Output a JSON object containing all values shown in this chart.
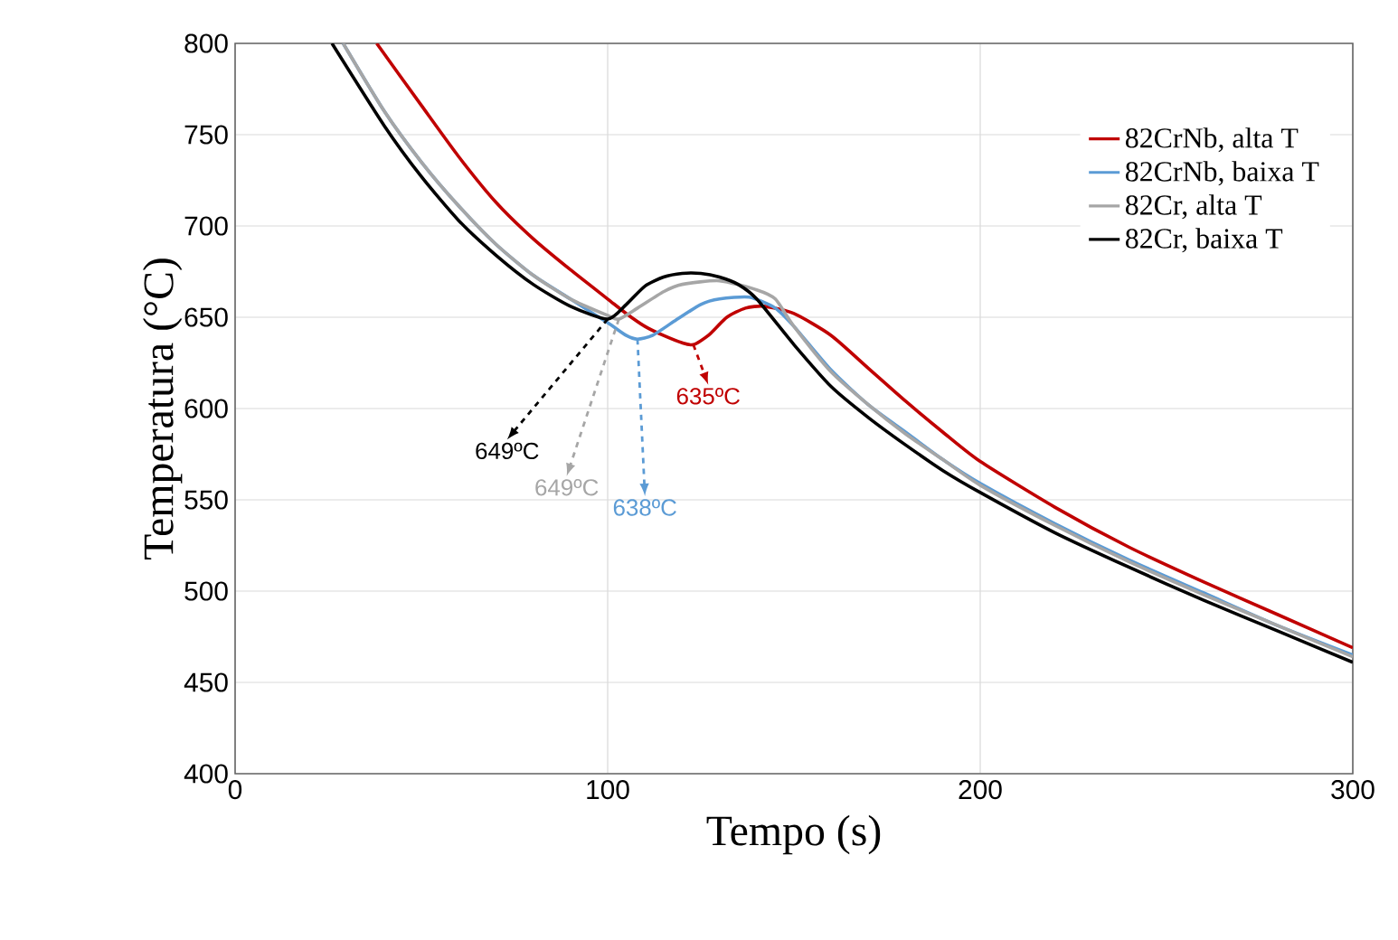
{
  "chart_data": {
    "type": "line",
    "xlabel": "Tempo (s)",
    "ylabel": "Temperatura (°C)",
    "xlim": [
      0,
      300
    ],
    "ylim": [
      400,
      800
    ],
    "xticks": [
      0,
      100,
      200,
      300
    ],
    "yticks": [
      400,
      450,
      500,
      550,
      600,
      650,
      700,
      750,
      800
    ],
    "grid": true,
    "legend": "top right",
    "marker": "none",
    "line_style": "solid",
    "series": [
      {
        "name": "82CrNb, alta T",
        "color": "#c00000",
        "x": [
          38,
          50,
          60,
          70,
          80,
          90,
          100,
          105,
          110,
          115,
          120,
          123,
          127,
          132,
          137,
          142,
          150,
          160,
          170,
          180,
          190,
          200,
          220,
          240,
          260,
          280,
          300
        ],
        "values": [
          800,
          766,
          738,
          713,
          693,
          676,
          660,
          652,
          645,
          640,
          636,
          635,
          640,
          650,
          655,
          656,
          652,
          640,
          622,
          604,
          587,
          571,
          546,
          524,
          505,
          487,
          469
        ]
      },
      {
        "name": "82CrNb, baixa T",
        "color": "#5b9bd5",
        "x": [
          29,
          40,
          50,
          60,
          70,
          80,
          90,
          100,
          105,
          108,
          112,
          118,
          125,
          130,
          138,
          145,
          150,
          160,
          170,
          180,
          190,
          200,
          220,
          240,
          260,
          280,
          300
        ],
        "values": [
          800,
          763,
          735,
          711,
          690,
          673,
          660,
          647,
          640,
          638,
          640,
          648,
          657,
          660,
          661,
          655,
          645,
          621,
          602,
          587,
          572,
          559,
          537,
          517,
          499,
          481,
          465
        ]
      },
      {
        "name": "82Cr, alta T",
        "color": "#a6a6a6",
        "x": [
          29,
          40,
          50,
          60,
          70,
          80,
          90,
          100,
          103,
          108,
          115,
          120,
          130,
          140,
          145,
          150,
          160,
          170,
          180,
          190,
          200,
          220,
          240,
          260,
          280,
          300
        ],
        "values": [
          800,
          763,
          735,
          711,
          690,
          673,
          660,
          651,
          649,
          655,
          664,
          668,
          670,
          665,
          660,
          645,
          620,
          602,
          586,
          572,
          558,
          536,
          516,
          498,
          481,
          464
        ]
      },
      {
        "name": "82Cr, baixa T",
        "color": "#000000",
        "x": [
          26,
          40,
          50,
          60,
          70,
          80,
          90,
          100,
          105,
          110,
          115,
          120,
          125,
          130,
          135,
          140,
          150,
          160,
          170,
          180,
          190,
          200,
          220,
          240,
          260,
          280,
          300
        ],
        "values": [
          800,
          755,
          727,
          703,
          684,
          668,
          656,
          649,
          657,
          667,
          672,
          674,
          674,
          672,
          668,
          660,
          635,
          612,
          595,
          580,
          566,
          554,
          532,
          513,
          495,
          478,
          461
        ]
      }
    ],
    "annotations": [
      {
        "text": "635ºC",
        "x": 123,
        "y": 635
      },
      {
        "text": "638ºC",
        "x": 108,
        "y": 638
      },
      {
        "text": "649ºC",
        "x": 103,
        "y": 649
      },
      {
        "text": "649ºC",
        "x": 100,
        "y": 649
      }
    ]
  }
}
